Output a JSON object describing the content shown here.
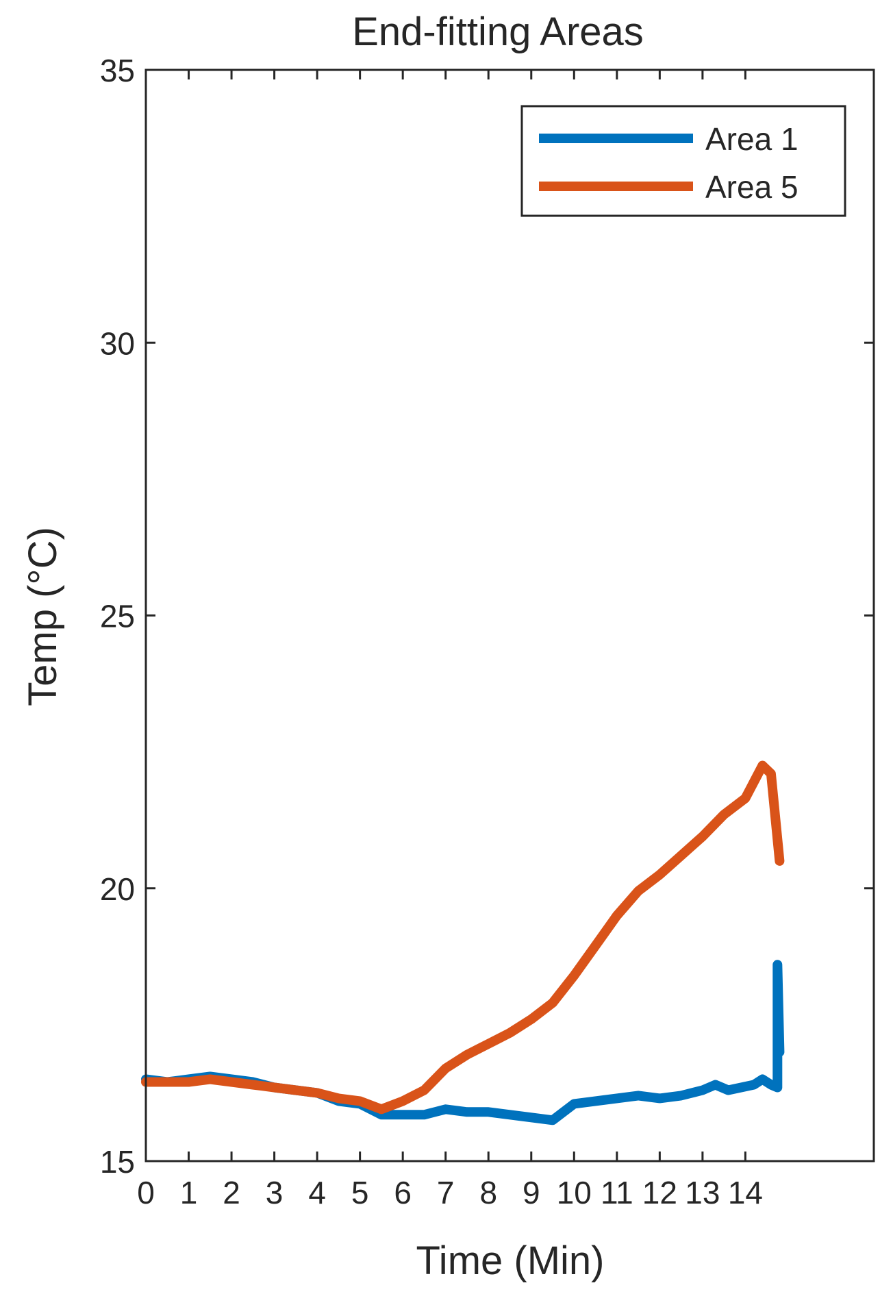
{
  "chart_data": {
    "type": "line",
    "title": "End-fitting Areas",
    "xlabel": "Time (Min)",
    "ylabel": "Temp (°C)",
    "xlim": [
      0,
      17
    ],
    "ylim": [
      15,
      35
    ],
    "xticks": [
      0,
      1,
      2,
      3,
      4,
      5,
      6,
      7,
      8,
      9,
      10,
      11,
      12,
      13,
      14
    ],
    "yticks": [
      15,
      20,
      25,
      30,
      35
    ],
    "grid": false,
    "legend_position": "top-right",
    "series": [
      {
        "name": "Area 1",
        "color": "#0072BD",
        "x": [
          0,
          0.5,
          1,
          1.5,
          2,
          2.5,
          3,
          3.5,
          4,
          4.5,
          5,
          5.5,
          6,
          6.5,
          7,
          7.5,
          8,
          8.5,
          9,
          9.5,
          10,
          10.5,
          11,
          11.5,
          12,
          12.5,
          13,
          13.3,
          13.6,
          13.9,
          14.2,
          14.4,
          14.6,
          14.75,
          14.75,
          14.8
        ],
        "y": [
          16.5,
          16.45,
          16.5,
          16.55,
          16.5,
          16.45,
          16.35,
          16.3,
          16.25,
          16.1,
          16.05,
          15.85,
          15.85,
          15.85,
          15.95,
          15.9,
          15.9,
          15.85,
          15.8,
          15.75,
          16.05,
          16.1,
          16.15,
          16.2,
          16.15,
          16.2,
          16.3,
          16.4,
          16.3,
          16.35,
          16.4,
          16.5,
          16.4,
          16.35,
          18.6,
          17.0
        ]
      },
      {
        "name": "Area 5",
        "color": "#D95319",
        "x": [
          0,
          0.5,
          1,
          1.5,
          2,
          2.5,
          3,
          3.5,
          4,
          4.5,
          5,
          5.5,
          6,
          6.5,
          7,
          7.5,
          8,
          8.5,
          9,
          9.5,
          10,
          10.5,
          11,
          11.5,
          12,
          12.5,
          13,
          13.5,
          14,
          14.2,
          14.4,
          14.6,
          14.8
        ],
        "y": [
          16.45,
          16.45,
          16.45,
          16.5,
          16.45,
          16.4,
          16.35,
          16.3,
          16.25,
          16.15,
          16.1,
          15.95,
          16.1,
          16.3,
          16.7,
          16.95,
          17.15,
          17.35,
          17.6,
          17.9,
          18.4,
          18.95,
          19.5,
          19.95,
          20.25,
          20.6,
          20.95,
          21.35,
          21.65,
          21.95,
          22.25,
          22.1,
          20.5
        ]
      }
    ]
  }
}
